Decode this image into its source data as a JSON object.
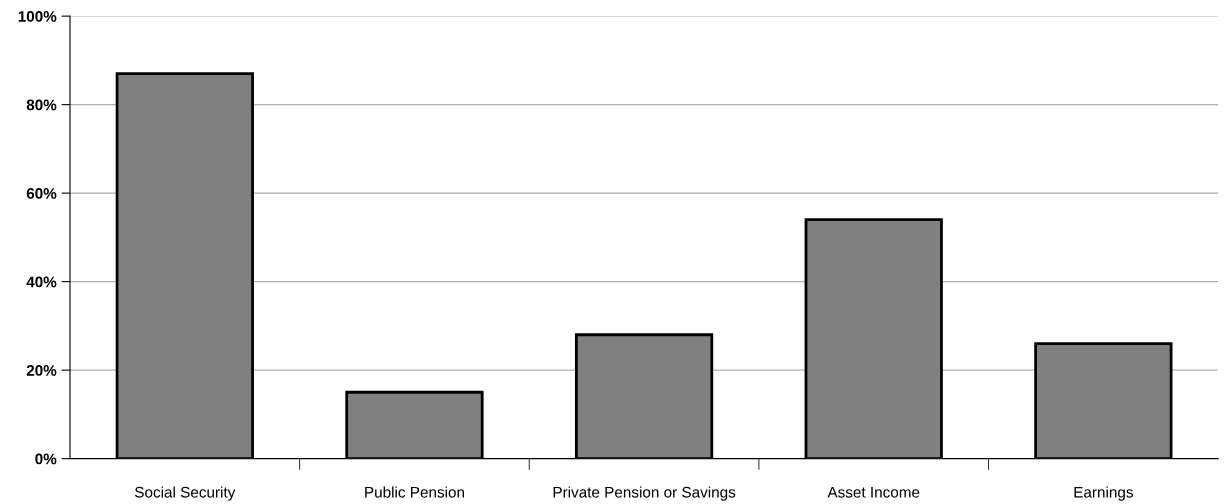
{
  "chart_data": {
    "type": "bar",
    "categories": [
      "Social Security",
      "Public Pension",
      "Private Pension or Savings",
      "Asset Income",
      "Earnings"
    ],
    "values": [
      87,
      15,
      28,
      54,
      26
    ],
    "color": "#808080",
    "ylim": [
      0,
      100
    ],
    "yticks": [
      {
        "value": 0,
        "label": "0%"
      },
      {
        "value": 20,
        "label": "20%"
      },
      {
        "value": 40,
        "label": "40%"
      },
      {
        "value": 60,
        "label": "60%"
      },
      {
        "value": 80,
        "label": "80%"
      },
      {
        "value": 100,
        "label": "100%"
      }
    ],
    "grid": "y"
  }
}
